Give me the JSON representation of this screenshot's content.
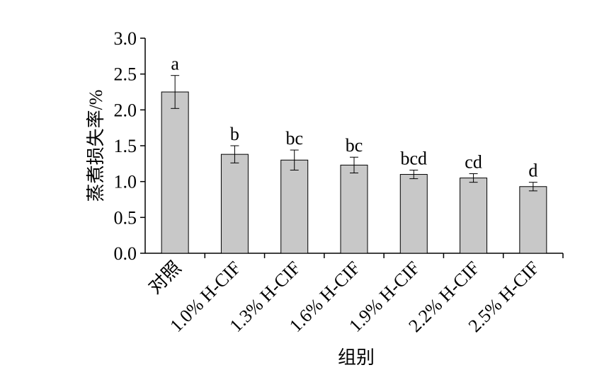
{
  "chart_data": {
    "type": "bar",
    "xlabel": "组别",
    "ylabel": "蒸煮损失率/%",
    "categories": [
      "对照",
      "1.0% H-CIF",
      "1.3% H-CIF",
      "1.6% H-CIF",
      "1.9% H-CIF",
      "2.2% H-CIF",
      "2.5% H-CIF"
    ],
    "values": [
      2.25,
      1.38,
      1.3,
      1.23,
      1.1,
      1.05,
      0.93
    ],
    "errors": [
      0.23,
      0.12,
      0.14,
      0.11,
      0.06,
      0.06,
      0.06
    ],
    "letters": [
      "a",
      "b",
      "bc",
      "bc",
      "bcd",
      "cd",
      "d"
    ],
    "color": "#c8c8c8",
    "ylim": [
      0,
      3.0
    ],
    "yticks": [
      {
        "value": 0,
        "label": "0.0"
      },
      {
        "value": 0.5,
        "label": "0.5"
      },
      {
        "value": 1.0,
        "label": "1.0"
      },
      {
        "value": 1.5,
        "label": "1.5"
      },
      {
        "value": 2.0,
        "label": "2.0"
      },
      {
        "value": 2.5,
        "label": "2.5"
      },
      {
        "value": 3.0,
        "label": "3.0"
      }
    ]
  }
}
